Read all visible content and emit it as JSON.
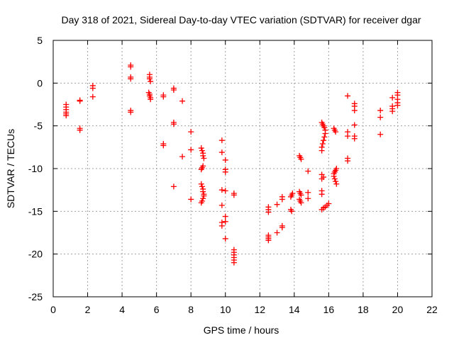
{
  "chart_data": {
    "type": "scatter",
    "title": "Day 318 of 2021, Sidereal Day-to-day VTEC variation (SDTVAR) for receiver dgar",
    "xlabel": "GPS time / hours",
    "ylabel": "SDTVAR / TECUs",
    "xlim": [
      0,
      22
    ],
    "ylim": [
      -25,
      5
    ],
    "xticks": [
      0,
      2,
      4,
      6,
      8,
      10,
      12,
      14,
      16,
      18,
      20,
      22
    ],
    "yticks": [
      -25,
      -20,
      -15,
      -10,
      -5,
      0,
      5
    ],
    "xtick_labels": [
      "0",
      "2",
      "4",
      "6",
      "8",
      "10",
      "12",
      "14",
      "16",
      "18",
      "20",
      "22"
    ],
    "ytick_labels": [
      "-25",
      "-20",
      "-15",
      "-10",
      "-5",
      "0",
      "5"
    ],
    "grid": true,
    "marker": "+",
    "marker_color": "#ff0000",
    "series": [
      {
        "name": "SDTVAR",
        "points": [
          [
            0.75,
            -2.5
          ],
          [
            0.75,
            -2.8
          ],
          [
            0.75,
            -3.1
          ],
          [
            0.75,
            -3.4
          ],
          [
            0.75,
            -3.6
          ],
          [
            0.75,
            -3.8
          ],
          [
            1.55,
            -2.0
          ],
          [
            1.55,
            -2.1
          ],
          [
            1.55,
            -5.3
          ],
          [
            1.55,
            -5.5
          ],
          [
            2.3,
            -0.3
          ],
          [
            2.3,
            -0.6
          ],
          [
            2.3,
            -1.6
          ],
          [
            4.5,
            2.1
          ],
          [
            4.5,
            1.9
          ],
          [
            4.5,
            0.7
          ],
          [
            4.5,
            0.5
          ],
          [
            4.5,
            -3.2
          ],
          [
            4.5,
            -3.4
          ],
          [
            5.6,
            1.0
          ],
          [
            5.6,
            0.7
          ],
          [
            5.6,
            0.5
          ],
          [
            5.65,
            0.2
          ],
          [
            5.55,
            -1.1
          ],
          [
            5.6,
            -1.3
          ],
          [
            5.6,
            -1.5
          ],
          [
            5.65,
            -1.7
          ],
          [
            5.65,
            -1.9
          ],
          [
            6.4,
            -1.4
          ],
          [
            6.4,
            -1.6
          ],
          [
            6.4,
            -7.1
          ],
          [
            6.4,
            -7.3
          ],
          [
            7.0,
            -0.6
          ],
          [
            7.0,
            -0.8
          ],
          [
            7.0,
            -4.6
          ],
          [
            7.0,
            -4.8
          ],
          [
            7.0,
            -12.1
          ],
          [
            7.5,
            -2.1
          ],
          [
            7.5,
            -8.6
          ],
          [
            8.0,
            -5.7
          ],
          [
            8.0,
            -7.8
          ],
          [
            8.0,
            -13.6
          ],
          [
            8.6,
            -7.6
          ],
          [
            8.65,
            -7.9
          ],
          [
            8.7,
            -8.2
          ],
          [
            8.7,
            -8.5
          ],
          [
            8.75,
            -8.8
          ],
          [
            8.6,
            -10.1
          ],
          [
            8.65,
            -9.9
          ],
          [
            8.7,
            -9.7
          ],
          [
            8.6,
            -11.8
          ],
          [
            8.65,
            -12.1
          ],
          [
            8.7,
            -12.4
          ],
          [
            8.7,
            -12.7
          ],
          [
            8.75,
            -13.0
          ],
          [
            8.75,
            -13.2
          ],
          [
            8.7,
            -13.5
          ],
          [
            8.65,
            -13.8
          ],
          [
            8.6,
            -14.0
          ],
          [
            9.8,
            -6.7
          ],
          [
            9.8,
            -8.1
          ],
          [
            9.8,
            -12.5
          ],
          [
            9.8,
            -14.3
          ],
          [
            9.8,
            -16.3
          ],
          [
            9.8,
            -16.7
          ],
          [
            10.0,
            -9.0
          ],
          [
            10.0,
            -10.1
          ],
          [
            10.0,
            -10.4
          ],
          [
            10.0,
            -12.6
          ],
          [
            10.0,
            -15.6
          ],
          [
            10.0,
            -16.2
          ],
          [
            10.0,
            -18.2
          ],
          [
            10.5,
            -12.9
          ],
          [
            10.5,
            -13.1
          ],
          [
            10.5,
            -19.5
          ],
          [
            10.5,
            -19.8
          ],
          [
            10.5,
            -20.1
          ],
          [
            10.5,
            -20.4
          ],
          [
            10.5,
            -20.7
          ],
          [
            10.5,
            -21.0
          ],
          [
            12.5,
            -14.5
          ],
          [
            12.5,
            -14.8
          ],
          [
            12.5,
            -15.1
          ],
          [
            12.5,
            -17.8
          ],
          [
            12.5,
            -18.0
          ],
          [
            12.5,
            -18.2
          ],
          [
            12.5,
            -18.4
          ],
          [
            13.0,
            -14.2
          ],
          [
            13.0,
            -17.5
          ],
          [
            13.3,
            -13.3
          ],
          [
            13.3,
            -13.6
          ],
          [
            13.3,
            -16.7
          ],
          [
            13.3,
            -16.9
          ],
          [
            13.9,
            -12.9
          ],
          [
            13.85,
            -13.1
          ],
          [
            13.8,
            -13.3
          ],
          [
            13.8,
            -14.8
          ],
          [
            13.85,
            -15.0
          ],
          [
            14.3,
            -8.5
          ],
          [
            14.35,
            -8.7
          ],
          [
            14.4,
            -8.9
          ],
          [
            14.3,
            -12.7
          ],
          [
            14.35,
            -12.9
          ],
          [
            14.4,
            -13.1
          ],
          [
            14.3,
            -13.6
          ],
          [
            14.35,
            -13.8
          ],
          [
            14.4,
            -14.0
          ],
          [
            14.8,
            -10.3
          ],
          [
            14.8,
            -12.8
          ],
          [
            14.8,
            -13.5
          ],
          [
            15.6,
            -4.6
          ],
          [
            15.65,
            -4.8
          ],
          [
            15.7,
            -5.0
          ],
          [
            15.75,
            -5.2
          ],
          [
            15.8,
            -5.5
          ],
          [
            15.8,
            -5.9
          ],
          [
            15.75,
            -6.3
          ],
          [
            15.7,
            -6.7
          ],
          [
            15.65,
            -7.1
          ],
          [
            15.6,
            -7.5
          ],
          [
            15.6,
            -7.9
          ],
          [
            15.6,
            -10.7
          ],
          [
            15.6,
            -11.2
          ],
          [
            15.7,
            -11.0
          ],
          [
            15.6,
            -12.6
          ],
          [
            15.6,
            -13.0
          ],
          [
            15.6,
            -14.8
          ],
          [
            15.7,
            -14.6
          ],
          [
            15.8,
            -14.5
          ],
          [
            15.9,
            -14.3
          ],
          [
            16.0,
            -14.1
          ],
          [
            16.3,
            -5.3
          ],
          [
            16.35,
            -5.5
          ],
          [
            16.4,
            -5.7
          ],
          [
            16.3,
            -10.6
          ],
          [
            16.35,
            -10.4
          ],
          [
            16.4,
            -10.2
          ],
          [
            16.45,
            -10.0
          ],
          [
            16.3,
            -10.9
          ],
          [
            16.35,
            -11.2
          ],
          [
            16.4,
            -11.5
          ],
          [
            16.45,
            -11.8
          ],
          [
            17.1,
            -1.5
          ],
          [
            17.1,
            -5.7
          ],
          [
            17.1,
            -6.2
          ],
          [
            17.1,
            -8.8
          ],
          [
            17.1,
            -9.1
          ],
          [
            17.5,
            -2.4
          ],
          [
            17.5,
            -2.7
          ],
          [
            17.5,
            -3.2
          ],
          [
            17.5,
            -4.9
          ],
          [
            17.5,
            -6.2
          ],
          [
            17.5,
            -6.5
          ],
          [
            19.0,
            -3.2
          ],
          [
            19.0,
            -4.0
          ],
          [
            19.0,
            -6.0
          ],
          [
            19.7,
            -1.7
          ],
          [
            19.7,
            -2.7
          ],
          [
            19.7,
            -3.0
          ],
          [
            19.7,
            -3.3
          ],
          [
            20.0,
            -1.1
          ],
          [
            20.0,
            -1.4
          ],
          [
            20.0,
            -1.9
          ],
          [
            20.0,
            -2.3
          ],
          [
            20.0,
            -2.6
          ]
        ]
      }
    ]
  }
}
